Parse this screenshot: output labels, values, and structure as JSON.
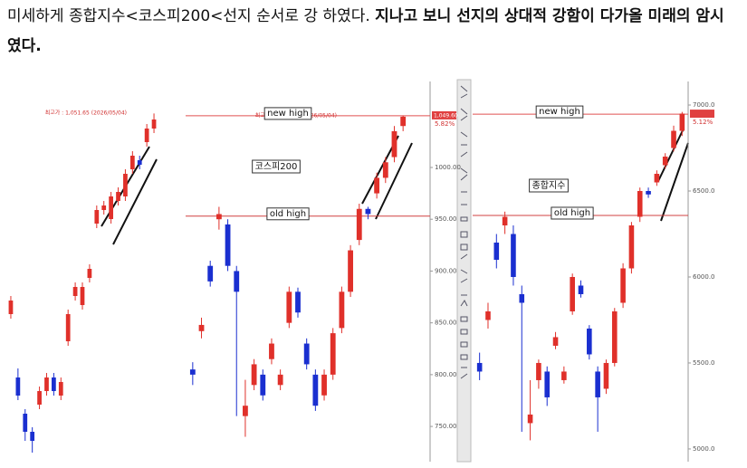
{
  "header": {
    "text_normal": "미세하게 종합지수<코스피200<선지 순서로 강 하였다. ",
    "text_bold": "지나고 보니 선지의 상대적 강함이 다가올 미래의 암시였다."
  },
  "chart_data": [
    {
      "type": "candlestick",
      "ylim": [
        667,
        1087
      ],
      "peak_label": "최고가 : 1,051.65 (2026/05/04)",
      "up_color": "#e0302a",
      "down_color": "#1a2fd0",
      "open": [
        830,
        760,
        720,
        700,
        730,
        745,
        760,
        740,
        800,
        850,
        840,
        870,
        930,
        945,
        935,
        955,
        960,
        990,
        1000,
        1020,
        1035
      ],
      "high": [
        850,
        770,
        725,
        705,
        750,
        765,
        765,
        760,
        835,
        865,
        865,
        885,
        950,
        955,
        965,
        970,
        990,
        1010,
        1005,
        1040,
        1051.65
      ],
      "low": [
        825,
        735,
        690,
        677,
        725,
        740,
        740,
        735,
        795,
        845,
        835,
        865,
        925,
        940,
        930,
        950,
        955,
        985,
        990,
        1015,
        1030
      ],
      "close": [
        845,
        740,
        700,
        690,
        745,
        760,
        745,
        755,
        830,
        860,
        860,
        880,
        945,
        950,
        960,
        965,
        985,
        1005,
        995,
        1035,
        1045
      ]
    },
    {
      "type": "candlestick",
      "title": "코스피200",
      "ylim": [
        716,
        1083
      ],
      "yticks": [
        {
          "value": 750,
          "label": "750.00"
        },
        {
          "value": 800,
          "label": "800.00"
        },
        {
          "value": 850,
          "label": "850.00"
        },
        {
          "value": 900,
          "label": "900.00"
        },
        {
          "value": 950,
          "label": "950.00"
        },
        {
          "value": 1000,
          "label": "1000.00"
        }
      ],
      "peak_label": "최고가 : 1,049.87 (2026/05/04)",
      "price_tag": "1,049.60",
      "change": "5.82%",
      "hlines": [
        {
          "label": "new high",
          "value": 1049.87
        },
        {
          "label": "old high",
          "value": 953
        }
      ],
      "up_color": "#e0302a",
      "down_color": "#1a2fd0",
      "open": [
        805,
        842,
        905,
        950,
        945,
        900,
        760,
        790,
        800,
        815,
        790,
        850,
        880,
        830,
        800,
        780,
        800,
        845,
        880,
        930,
        960,
        975,
        990,
        1010,
        1040
      ],
      "high": [
        812,
        855,
        910,
        962,
        950,
        905,
        795,
        815,
        805,
        835,
        805,
        885,
        884,
        835,
        805,
        805,
        845,
        885,
        925,
        965,
        962,
        995,
        1010,
        1040,
        1050
      ],
      "low": [
        790,
        835,
        885,
        940,
        900,
        760,
        740,
        785,
        775,
        810,
        785,
        845,
        855,
        805,
        765,
        775,
        795,
        840,
        875,
        925,
        950,
        970,
        985,
        1005,
        1035
      ],
      "close": [
        800,
        848,
        890,
        955,
        905,
        880,
        770,
        810,
        780,
        830,
        800,
        880,
        860,
        810,
        770,
        800,
        840,
        880,
        920,
        960,
        955,
        990,
        1005,
        1035,
        1049
      ]
    },
    {
      "type": "candlestick",
      "title": "종합지수",
      "ylim": [
        4926,
        7137
      ],
      "yticks": [
        {
          "value": 5000,
          "label": "5000.0"
        },
        {
          "value": 5500,
          "label": "5500.0"
        },
        {
          "value": 6000,
          "label": "6000.0"
        },
        {
          "value": 6500,
          "label": "6500.0"
        },
        {
          "value": 7000,
          "label": "7000.0"
        }
      ],
      "change": "5.12%",
      "hlines": [
        {
          "label": "new high",
          "value": 6947
        },
        {
          "label": "old high",
          "value": 6358
        }
      ],
      "up_color": "#e0302a",
      "down_color": "#1a2fd0",
      "open": [
        5500,
        5750,
        6200,
        6300,
        6250,
        5900,
        5150,
        5400,
        5450,
        5600,
        5400,
        5800,
        5950,
        5700,
        5450,
        5350,
        5500,
        5850,
        6050,
        6350,
        6500,
        6550,
        6650,
        6750,
        6850
      ],
      "high": [
        5560,
        5850,
        6250,
        6380,
        6300,
        5950,
        5400,
        5520,
        5480,
        5680,
        5480,
        6020,
        5980,
        5720,
        5480,
        5520,
        5820,
        6080,
        6320,
        6520,
        6520,
        6620,
        6720,
        6880,
        6960
      ],
      "low": [
        5400,
        5700,
        6050,
        6250,
        5950,
        5100,
        5050,
        5350,
        5250,
        5580,
        5380,
        5780,
        5880,
        5520,
        5100,
        5320,
        5480,
        5820,
        6020,
        6320,
        6460,
        6530,
        6630,
        6730,
        6820
      ],
      "close": [
        5450,
        5800,
        6100,
        6350,
        6000,
        5850,
        5200,
        5500,
        5300,
        5650,
        5450,
        6000,
        5900,
        5550,
        5300,
        5500,
        5800,
        6050,
        6300,
        6500,
        6480,
        6600,
        6700,
        6850,
        6950
      ]
    }
  ]
}
